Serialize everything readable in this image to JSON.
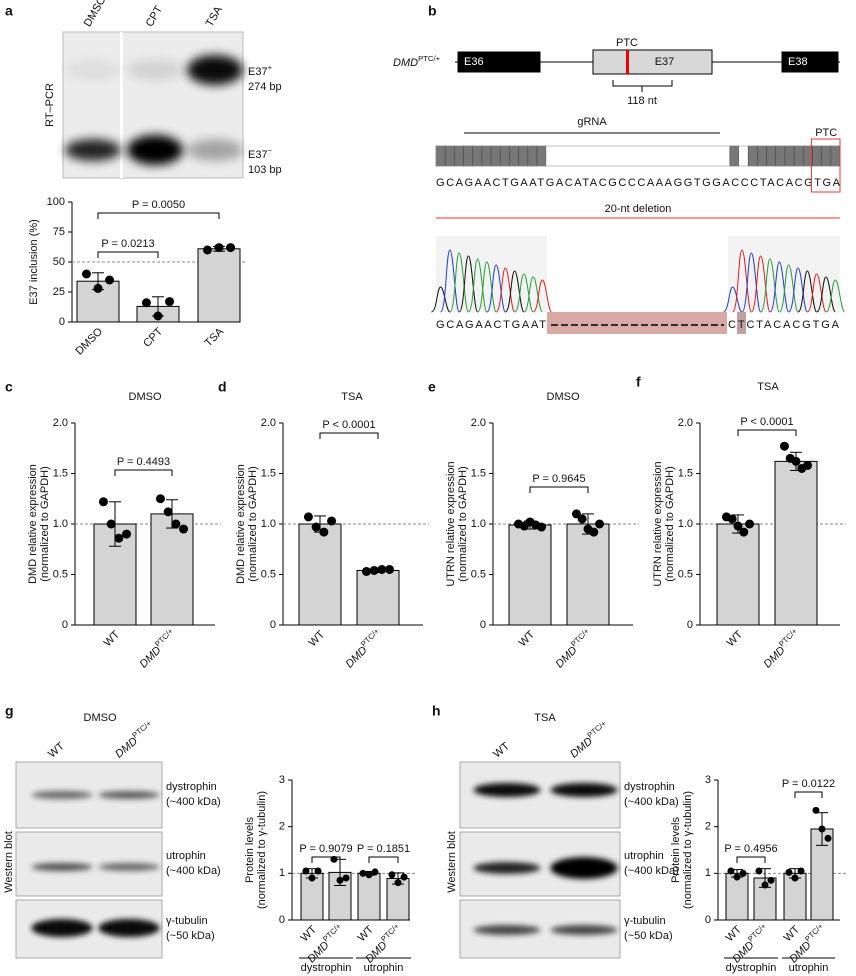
{
  "chart_data": [
    {
      "panel": "a",
      "type": "bar",
      "ylabel": [
        "E37 inclusion (%)"
      ],
      "categories": [
        "DMSO",
        "CPT",
        "TSA"
      ],
      "values": [
        34,
        13,
        61
      ],
      "errors": [
        7,
        8,
        2
      ],
      "points": [
        [
          40,
          28,
          35
        ],
        [
          16,
          5,
          17
        ],
        [
          60,
          62,
          62
        ]
      ],
      "color": "#d4d4d4",
      "ylim": [
        0,
        100
      ],
      "yticks": [
        0,
        25,
        50,
        75,
        100
      ],
      "reference_line": 50,
      "comparisons": [
        {
          "pair": [
            0,
            1
          ],
          "label": "P = 0.0213"
        },
        {
          "pair": [
            0,
            2
          ],
          "label": "P = 0.0050"
        }
      ]
    },
    {
      "panel": "c",
      "type": "bar",
      "title": "DMSO",
      "ylabel": [
        "DMD relative expression",
        "(normalized to GAPDH)"
      ],
      "categories": [
        "WT",
        [
          "DMD",
          "PTC/+"
        ]
      ],
      "values": [
        1.0,
        1.1
      ],
      "errors": [
        0.22,
        0.14
      ],
      "points": [
        [
          1.22,
          1.0,
          0.86,
          0.9
        ],
        [
          1.25,
          1.12,
          1.0,
          0.95
        ]
      ],
      "color": "#d4d4d4",
      "ylim": [
        0,
        2
      ],
      "yticks": [
        0,
        0.5,
        {
          "value": 1,
          "label": "1.0"
        },
        1.5,
        {
          "value": 2,
          "label": "2.0"
        }
      ],
      "reference_line": 1,
      "comparisons": [
        {
          "pair": [
            0,
            1
          ],
          "label": "P = 0.4493"
        }
      ]
    },
    {
      "panel": "d",
      "type": "bar",
      "title": "TSA",
      "ylabel": [
        "DMD relative expression",
        "(normalized to GAPDH)"
      ],
      "categories": [
        "WT",
        [
          "DMD",
          "PTC/+"
        ]
      ],
      "values": [
        1.0,
        0.54
      ],
      "errors": [
        0.08,
        0.02
      ],
      "points": [
        [
          1.07,
          0.97,
          0.92,
          1.03
        ],
        [
          0.53,
          0.54,
          0.55,
          0.55
        ]
      ],
      "color": "#d4d4d4",
      "ylim": [
        0,
        2
      ],
      "yticks": [
        0,
        0.5,
        {
          "value": 1,
          "label": "1.0"
        },
        1.5,
        {
          "value": 2,
          "label": "2.0"
        }
      ],
      "reference_line": 1,
      "comparisons": [
        {
          "pair": [
            0,
            1
          ],
          "label": "P < 0.0001"
        }
      ]
    },
    {
      "panel": "e",
      "type": "bar",
      "title": "DMSO",
      "ylabel": [
        "UTRN relative expression",
        "(normalized to GAPDH)"
      ],
      "categories": [
        "WT",
        [
          "DMD",
          "PTC/+"
        ]
      ],
      "values": [
        0.99,
        1.0
      ],
      "errors": [
        0.04,
        0.1
      ],
      "points": [
        [
          1.0,
          0.98,
          1.02,
          0.99,
          0.97
        ],
        [
          1.1,
          1.05,
          0.95,
          0.92,
          1.0
        ]
      ],
      "color": "#d4d4d4",
      "ylim": [
        0,
        2
      ],
      "yticks": [
        0,
        0.5,
        {
          "value": 1,
          "label": "1.0"
        },
        1.5,
        {
          "value": 2,
          "label": "2.0"
        }
      ],
      "reference_line": 1,
      "comparisons": [
        {
          "pair": [
            0,
            1
          ],
          "label": "P = 0.9645"
        }
      ]
    },
    {
      "panel": "f",
      "type": "bar",
      "title": "TSA",
      "ylabel": [
        "UTRN relative expression",
        "(normalized to GAPDH)"
      ],
      "categories": [
        "WT",
        [
          "DMD",
          "PTC/+"
        ]
      ],
      "values": [
        1.0,
        1.62
      ],
      "errors": [
        0.09,
        0.09
      ],
      "points": [
        [
          1.07,
          1.05,
          0.98,
          0.92,
          1.0
        ],
        [
          1.77,
          1.65,
          1.62,
          1.55,
          1.58
        ]
      ],
      "color": "#d4d4d4",
      "ylim": [
        0,
        2
      ],
      "yticks": [
        0,
        0.5,
        {
          "value": 1,
          "label": "1.0"
        },
        1.5,
        {
          "value": 2,
          "label": "2.0"
        }
      ],
      "reference_line": 1,
      "comparisons": [
        {
          "pair": [
            0,
            1
          ],
          "label": "P < 0.0001"
        }
      ]
    },
    {
      "type": "bar",
      "ylabel": [
        "Protein levels",
        "(normalized to γ-tubulin)"
      ],
      "categories": [
        "WT",
        [
          "DMD",
          "PTC/+"
        ],
        "WT",
        [
          "DMD",
          "PTC/+"
        ]
      ],
      "values": [
        1.0,
        1.02,
        1.0,
        0.89
      ],
      "errors": [
        0.1,
        0.28,
        0.04,
        0.12
      ],
      "points": [
        [
          1.05,
          0.9,
          1.05
        ],
        [
          1.3,
          0.85,
          0.9
        ],
        [
          1.0,
          0.97,
          1.03
        ],
        [
          0.97,
          0.8,
          0.92
        ]
      ],
      "color": "#d4d4d4",
      "ylim": [
        0,
        3
      ],
      "yticks": [
        0,
        1,
        2,
        3
      ],
      "reference_line": 1,
      "comparisons": [
        {
          "pair": [
            0,
            1
          ],
          "label": "P = 0.9079"
        },
        {
          "pair": [
            2,
            3
          ],
          "label": "P = 0.1851"
        }
      ],
      "groups": [
        {
          "name": "dystrophin",
          "categories": [
            0,
            1
          ]
        },
        {
          "name": "utrophin",
          "categories": [
            2,
            3
          ]
        }
      ]
    },
    {
      "type": "bar",
      "ylabel": [
        "Protein levels",
        "(normalized to γ-tubulin)"
      ],
      "categories": [
        "WT",
        [
          "DMD",
          "PTC/+"
        ],
        "WT",
        [
          "DMD",
          "PTC/+"
        ]
      ],
      "values": [
        1.0,
        0.9,
        1.0,
        1.95
      ],
      "errors": [
        0.08,
        0.2,
        0.1,
        0.35
      ],
      "points": [
        [
          1.05,
          0.92,
          1.0
        ],
        [
          1.05,
          0.75,
          0.85
        ],
        [
          1.02,
          0.9,
          1.05
        ],
        [
          2.35,
          1.95,
          1.75
        ]
      ],
      "color": "#d4d4d4",
      "ylim": [
        0,
        3
      ],
      "yticks": [
        0,
        1,
        2,
        3
      ],
      "reference_line": 1,
      "comparisons": [
        {
          "pair": [
            0,
            1
          ],
          "label": "P = 0.4956"
        },
        {
          "pair": [
            2,
            3
          ],
          "label": "P = 0.0122"
        }
      ],
      "groups": [
        {
          "name": "dystrophin",
          "categories": [
            0,
            1
          ]
        },
        {
          "name": "utrophin",
          "categories": [
            2,
            3
          ]
        }
      ]
    }
  ],
  "gel": {
    "lanes": [
      "DMSO",
      "CPT",
      "TSA"
    ],
    "side_label": "RT–PCR",
    "bands": [
      {
        "name": [
          "E37",
          "+"
        ],
        "size": "274 bp"
      },
      {
        "name": [
          "E37",
          "−"
        ],
        "size": "103 bp"
      }
    ]
  },
  "diagram": {
    "panel": "b",
    "gene": [
      "DMD",
      "PTC/+"
    ],
    "exons": [
      "E36",
      "E37",
      "E38"
    ],
    "ptc": "PTC",
    "exon_length": "118 nt",
    "grna": "gRNA",
    "sequence": "GCAGAACTGAATGACATACGCCCAAAGGTGGACCCTACACGTGA",
    "ptc_box": "PTC",
    "deletion": "20-nt deletion",
    "edited": [
      "GCAGAACTGAAT",
      "CTCTACACGTGA"
    ]
  },
  "blots": [
    {
      "panel": "g",
      "title": "DMSO",
      "lanes": [
        "WT",
        [
          "DMD",
          "PTC/+"
        ]
      ],
      "side_label": "Western blot",
      "proteins": [
        {
          "name": "dystrophin",
          "size": "(~400 kDa)"
        },
        {
          "name": "utrophin",
          "size": "(~400 kDa)"
        },
        {
          "name": "γ-tubulin",
          "size": "(~50 kDa)"
        }
      ]
    },
    {
      "panel": "h",
      "title": "TSA",
      "lanes": [
        "WT",
        [
          "DMD",
          "PTC/+"
        ]
      ],
      "side_label": "Western blot",
      "proteins": [
        {
          "name": "dystrophin",
          "size": "(~400 kDa)"
        },
        {
          "name": "utrophin",
          "size": "(~400 kDa)"
        },
        {
          "name": "γ-tubulin",
          "size": "(~50 kDa)"
        }
      ]
    }
  ]
}
